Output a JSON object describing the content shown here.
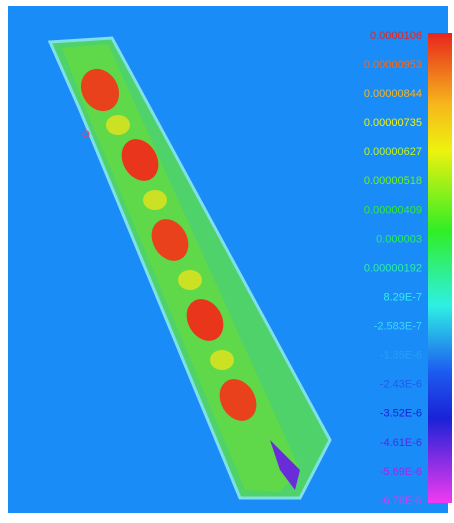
{
  "legend": {
    "items": [
      {
        "label": "0.0000106",
        "color": "#e8241c"
      },
      {
        "label": "0.00000953",
        "color": "#f26a1e"
      },
      {
        "label": "0.00000844",
        "color": "#f6b51c"
      },
      {
        "label": "0.00000735",
        "color": "#eef20f"
      },
      {
        "label": "0.00000627",
        "color": "#bff51a"
      },
      {
        "label": "0.00000518",
        "color": "#6ef21c"
      },
      {
        "label": "0.00000409",
        "color": "#31ee24"
      },
      {
        "label": "0.000003",
        "color": "#27ef5a"
      },
      {
        "label": "0.00000192",
        "color": "#2af0a0"
      },
      {
        "label": "8.29E-7",
        "color": "#2ef0e4"
      },
      {
        "label": "-2.583E-7",
        "color": "#39d8f7"
      },
      {
        "label": "-1.35E-6",
        "color": "#2c9cf5"
      },
      {
        "label": "-2.43E-6",
        "color": "#1d5cf0"
      },
      {
        "label": "-3.52E-6",
        "color": "#1a22d6"
      },
      {
        "label": "-4.61E-6",
        "color": "#5e22e6"
      },
      {
        "label": "-5.69E-6",
        "color": "#a126eb"
      },
      {
        "label": "-6.78E-6",
        "color": "#e633ef"
      }
    ]
  }
}
